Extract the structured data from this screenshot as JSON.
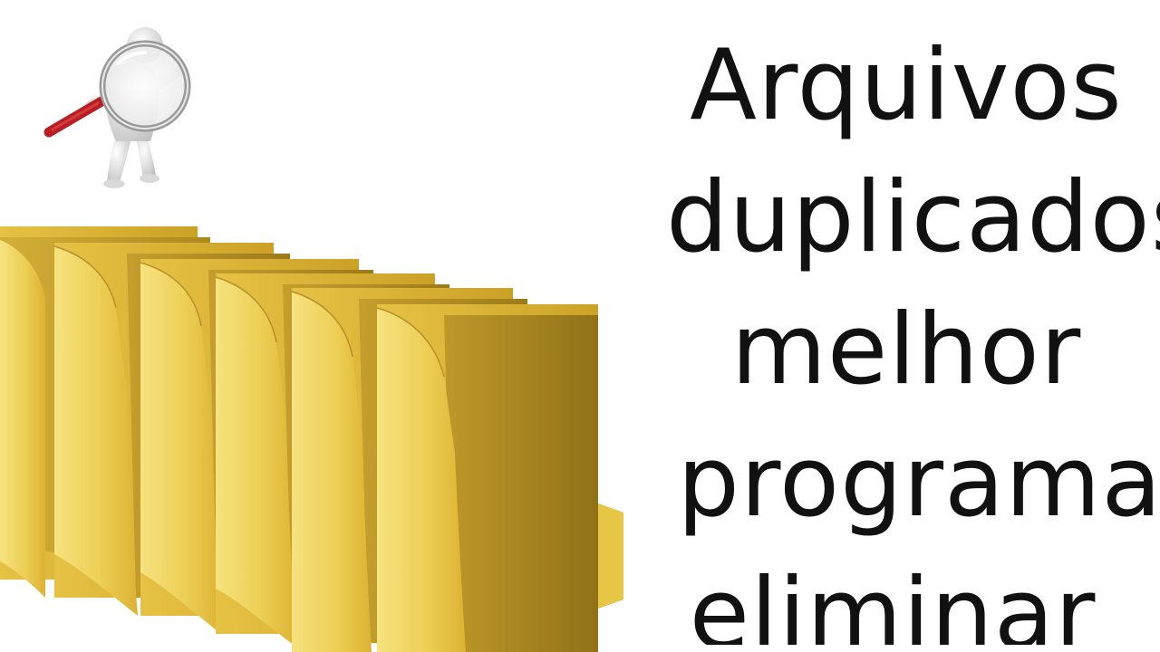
{
  "title": {
    "lines": [
      "Arquivos",
      "duplicados",
      "melhor",
      "programa",
      "eliminar"
    ]
  },
  "illustration": {
    "figure": "3d-person-with-magnifying-glass",
    "folders_count": 6
  },
  "colors": {
    "background": "#ffffff",
    "text": "#111111",
    "folder_light": "#f4dd7a",
    "folder_mid": "#e9c545",
    "folder_dark": "#c9a12a",
    "magnifier_handle": "#c8262a"
  }
}
